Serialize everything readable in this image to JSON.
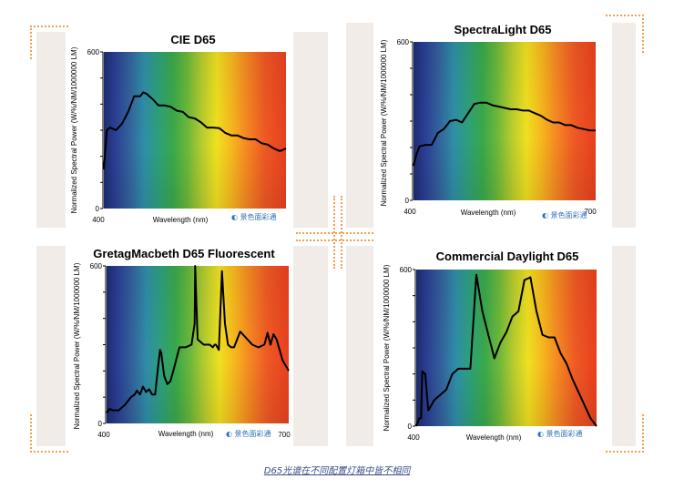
{
  "caption": "D65光谱在不同配置灯箱中皆不相同",
  "watermark": "景色面彩通",
  "colors": {
    "deco": "#f0a050",
    "bg": "#f1ece7",
    "curve": "#000000"
  },
  "chart_data": [
    {
      "type": "line",
      "title": "CIE D65",
      "xlabel": "Wavelength (nm)",
      "ylabel": "Normalized Spectral Power (W/%/NM/1000000 LM)",
      "x_tick_labels": [
        "400"
      ],
      "y_tick_labels": [
        "600",
        "0"
      ],
      "xlim": [
        400,
        700
      ],
      "ylim": [
        0,
        600
      ],
      "series": [
        {
          "x": [
            400,
            405,
            410,
            420,
            430,
            440,
            450,
            460,
            465,
            470,
            480,
            490,
            500,
            510,
            520,
            530,
            540,
            550,
            560,
            570,
            580,
            590,
            600,
            610,
            620,
            630,
            640,
            650,
            660,
            670,
            680,
            690,
            700
          ],
          "y": [
            150,
            300,
            310,
            300,
            325,
            370,
            430,
            430,
            445,
            440,
            420,
            395,
            395,
            390,
            375,
            370,
            350,
            345,
            330,
            310,
            310,
            308,
            290,
            280,
            280,
            270,
            265,
            265,
            250,
            245,
            230,
            220,
            230
          ]
        }
      ]
    },
    {
      "type": "line",
      "title": "SpectraLight D65",
      "xlabel": "Wavelength (nm)",
      "ylabel": "Normalized Spectral Power (W/%/NM/1000000 LM)",
      "x_tick_labels": [
        "400",
        "700"
      ],
      "y_tick_labels": [
        "600",
        "0"
      ],
      "xlim": [
        400,
        700
      ],
      "ylim": [
        0,
        600
      ],
      "series": [
        {
          "x": [
            400,
            405,
            410,
            420,
            430,
            440,
            450,
            460,
            470,
            480,
            490,
            500,
            510,
            520,
            530,
            540,
            550,
            560,
            570,
            580,
            590,
            600,
            610,
            620,
            630,
            640,
            650,
            660,
            670,
            680,
            690,
            700
          ],
          "y": [
            130,
            175,
            205,
            210,
            210,
            255,
            270,
            300,
            305,
            295,
            330,
            365,
            370,
            370,
            360,
            355,
            350,
            345,
            345,
            340,
            340,
            330,
            320,
            305,
            295,
            295,
            285,
            285,
            275,
            270,
            265,
            265
          ]
        }
      ]
    },
    {
      "type": "line",
      "title": "GretagMacbeth D65 Fluorescent",
      "xlabel": "Wavelength (nm)",
      "ylabel": "Normalized Spectral Power (W/%/NM/1000000 LM)",
      "x_tick_labels": [
        "400",
        "700"
      ],
      "y_tick_labels": [
        "600",
        "0"
      ],
      "xlim": [
        400,
        700
      ],
      "ylim": [
        0,
        600
      ],
      "series": [
        {
          "x": [
            400,
            405,
            410,
            420,
            430,
            440,
            446,
            450,
            455,
            460,
            465,
            470,
            475,
            480,
            485,
            488,
            490,
            495,
            500,
            505,
            510,
            520,
            530,
            540,
            545,
            546,
            548,
            550,
            560,
            570,
            575,
            578,
            580,
            585,
            590,
            595,
            600,
            605,
            610,
            620,
            640,
            650,
            660,
            665,
            670,
            675,
            680,
            690,
            700
          ],
          "y": [
            40,
            55,
            50,
            50,
            70,
            100,
            110,
            125,
            110,
            140,
            120,
            130,
            110,
            110,
            220,
            280,
            270,
            180,
            150,
            160,
            200,
            290,
            290,
            300,
            380,
            600,
            450,
            320,
            300,
            300,
            290,
            300,
            300,
            280,
            580,
            380,
            300,
            290,
            290,
            350,
            300,
            290,
            300,
            345,
            300,
            340,
            320,
            240,
            200
          ]
        }
      ]
    },
    {
      "type": "line",
      "title": "Commercial Daylight D65",
      "xlabel": "Wavelength (nm)",
      "ylabel": "Normalized Spectral Power (W/%/NM/1000000 LM)",
      "x_tick_labels": [
        "400"
      ],
      "y_tick_labels": [
        "600",
        "0"
      ],
      "xlim": [
        400,
        700
      ],
      "ylim": [
        0,
        600
      ],
      "series": [
        {
          "x": [
            400,
            405,
            408,
            410,
            415,
            420,
            425,
            430,
            435,
            440,
            450,
            460,
            470,
            480,
            490,
            500,
            510,
            520,
            530,
            540,
            550,
            560,
            570,
            580,
            590,
            600,
            610,
            620,
            630,
            640,
            650,
            660,
            670,
            680,
            690,
            700
          ],
          "y": [
            0,
            30,
            30,
            210,
            200,
            60,
            80,
            100,
            110,
            120,
            140,
            200,
            220,
            220,
            220,
            580,
            440,
            350,
            260,
            320,
            360,
            420,
            440,
            560,
            570,
            440,
            350,
            340,
            340,
            280,
            240,
            180,
            130,
            80,
            30,
            0
          ]
        }
      ]
    }
  ]
}
